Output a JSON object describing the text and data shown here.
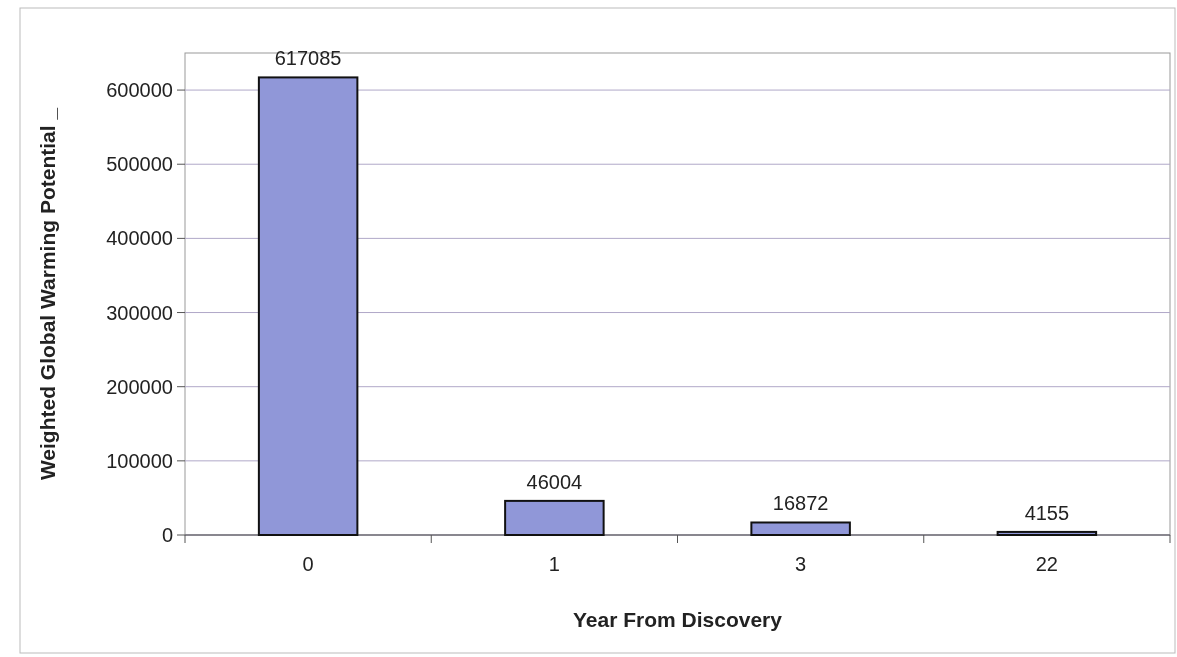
{
  "chart_data": {
    "type": "bar",
    "xlabel": "Year From Discovery",
    "ylabel": "Weighted Global Warming Potential _",
    "categories": [
      "0",
      "1",
      "3",
      "22"
    ],
    "values": [
      617085,
      46004,
      16872,
      4155
    ],
    "color": "#9097d8",
    "ylim": [
      0,
      650000
    ],
    "yticks": [
      0,
      100000,
      200000,
      300000,
      400000,
      500000,
      600000
    ],
    "grid": "y",
    "data_labels": true
  }
}
